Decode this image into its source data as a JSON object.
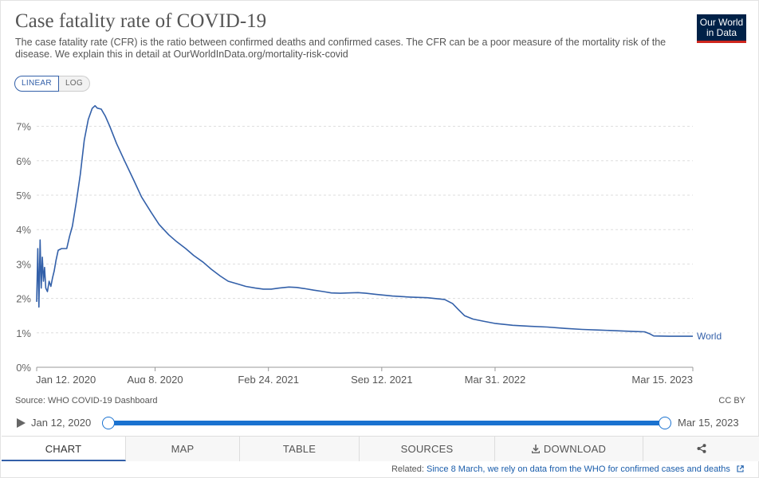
{
  "header": {
    "title": "Case fatality rate of COVID-19",
    "subtitle": "The case fatality rate (CFR) is the ratio between confirmed deaths and confirmed cases. The CFR can be a poor measure of the mortality risk of the disease. We explain this in detail at OurWorldInData.org/mortality-risk-covid"
  },
  "logo": {
    "line1": "Our World",
    "line2": "in Data"
  },
  "scale": {
    "linear_label": "LINEAR",
    "log_label": "LOG",
    "selected": "LINEAR"
  },
  "chart_data": {
    "type": "line",
    "title": "Case fatality rate of COVID-19",
    "xlabel": "",
    "ylabel": "",
    "x_ticks": [
      "Jan 12, 2020",
      "Aug 8, 2020",
      "Feb 24, 2021",
      "Sep 12, 2021",
      "Mar 31, 2022",
      "Mar 15, 2023"
    ],
    "y_ticks": [
      "0%",
      "1%",
      "2%",
      "3%",
      "4%",
      "5%",
      "6%",
      "7%"
    ],
    "ylim": [
      0,
      7.6
    ],
    "xlim": [
      "2020-01-12",
      "2023-03-15"
    ],
    "grid": "horizontal dashed",
    "series": [
      {
        "name": "World",
        "color": "#3360a9",
        "points": [
          [
            "2020-01-12",
            1.9
          ],
          [
            "2020-01-14",
            3.45
          ],
          [
            "2020-01-16",
            1.75
          ],
          [
            "2020-01-18",
            3.7
          ],
          [
            "2020-01-20",
            2.3
          ],
          [
            "2020-01-22",
            3.2
          ],
          [
            "2020-01-24",
            2.5
          ],
          [
            "2020-01-26",
            2.9
          ],
          [
            "2020-01-28",
            2.3
          ],
          [
            "2020-01-31",
            2.2
          ],
          [
            "2020-02-03",
            2.5
          ],
          [
            "2020-02-06",
            2.35
          ],
          [
            "2020-02-09",
            2.6
          ],
          [
            "2020-02-12",
            2.8
          ],
          [
            "2020-02-15",
            3.1
          ],
          [
            "2020-02-19",
            3.4
          ],
          [
            "2020-02-25",
            3.45
          ],
          [
            "2020-03-05",
            3.45
          ],
          [
            "2020-03-10",
            3.8
          ],
          [
            "2020-03-15",
            4.1
          ],
          [
            "2020-03-22",
            4.8
          ],
          [
            "2020-03-29",
            5.6
          ],
          [
            "2020-04-05",
            6.6
          ],
          [
            "2020-04-12",
            7.2
          ],
          [
            "2020-04-19",
            7.52
          ],
          [
            "2020-04-24",
            7.6
          ],
          [
            "2020-04-28",
            7.53
          ],
          [
            "2020-05-05",
            7.5
          ],
          [
            "2020-05-12",
            7.3
          ],
          [
            "2020-05-20",
            7.0
          ],
          [
            "2020-06-01",
            6.5
          ],
          [
            "2020-06-15",
            6.0
          ],
          [
            "2020-07-01",
            5.45
          ],
          [
            "2020-07-15",
            4.95
          ],
          [
            "2020-08-01",
            4.5
          ],
          [
            "2020-08-15",
            4.15
          ],
          [
            "2020-09-01",
            3.85
          ],
          [
            "2020-09-15",
            3.65
          ],
          [
            "2020-10-01",
            3.45
          ],
          [
            "2020-10-15",
            3.25
          ],
          [
            "2020-11-01",
            3.05
          ],
          [
            "2020-11-15",
            2.85
          ],
          [
            "2020-12-01",
            2.65
          ],
          [
            "2020-12-15",
            2.5
          ],
          [
            "2021-01-01",
            2.42
          ],
          [
            "2021-01-15",
            2.35
          ],
          [
            "2021-02-01",
            2.3
          ],
          [
            "2021-02-15",
            2.27
          ],
          [
            "2021-03-01",
            2.27
          ],
          [
            "2021-03-15",
            2.3
          ],
          [
            "2021-04-01",
            2.33
          ],
          [
            "2021-04-15",
            2.32
          ],
          [
            "2021-05-01",
            2.28
          ],
          [
            "2021-05-15",
            2.24
          ],
          [
            "2021-06-01",
            2.2
          ],
          [
            "2021-06-15",
            2.16
          ],
          [
            "2021-07-01",
            2.15
          ],
          [
            "2021-07-15",
            2.16
          ],
          [
            "2021-08-01",
            2.17
          ],
          [
            "2021-08-15",
            2.15
          ],
          [
            "2021-09-01",
            2.12
          ],
          [
            "2021-10-01",
            2.07
          ],
          [
            "2021-11-01",
            2.04
          ],
          [
            "2021-12-01",
            2.02
          ],
          [
            "2022-01-01",
            1.97
          ],
          [
            "2022-01-15",
            1.85
          ],
          [
            "2022-01-25",
            1.68
          ],
          [
            "2022-02-05",
            1.5
          ],
          [
            "2022-02-20",
            1.4
          ],
          [
            "2022-03-10",
            1.34
          ],
          [
            "2022-04-01",
            1.27
          ],
          [
            "2022-05-01",
            1.22
          ],
          [
            "2022-06-01",
            1.19
          ],
          [
            "2022-07-01",
            1.17
          ],
          [
            "2022-08-01",
            1.13
          ],
          [
            "2022-09-01",
            1.1
          ],
          [
            "2022-10-01",
            1.08
          ],
          [
            "2022-11-01",
            1.06
          ],
          [
            "2022-12-01",
            1.04
          ],
          [
            "2022-12-20",
            1.03
          ],
          [
            "2022-12-28",
            0.98
          ],
          [
            "2023-01-05",
            0.91
          ],
          [
            "2023-02-01",
            0.9
          ],
          [
            "2023-03-15",
            0.9
          ]
        ]
      }
    ]
  },
  "footer": {
    "source": "Source: WHO COVID-19 Dashboard",
    "license": "CC BY"
  },
  "timeline": {
    "start_label": "Jan 12, 2020",
    "end_label": "Mar 15, 2023",
    "play_icon": "play-icon"
  },
  "tabs": [
    {
      "label": "CHART",
      "active": true
    },
    {
      "label": "MAP",
      "active": false
    },
    {
      "label": "TABLE",
      "active": false
    },
    {
      "label": "SOURCES",
      "active": false
    },
    {
      "label": "DOWNLOAD",
      "active": false,
      "icon": "download-icon"
    },
    {
      "label": "",
      "active": false,
      "icon": "share-icon"
    }
  ],
  "related": {
    "prefix": "Related:",
    "link_text": "Since 8 March, we rely on data from the WHO for confirmed cases and deaths"
  },
  "colors": {
    "series": "#3360a9",
    "accent": "#1a72d0",
    "logo_bg": "#002147",
    "logo_bar": "#ce261e"
  }
}
